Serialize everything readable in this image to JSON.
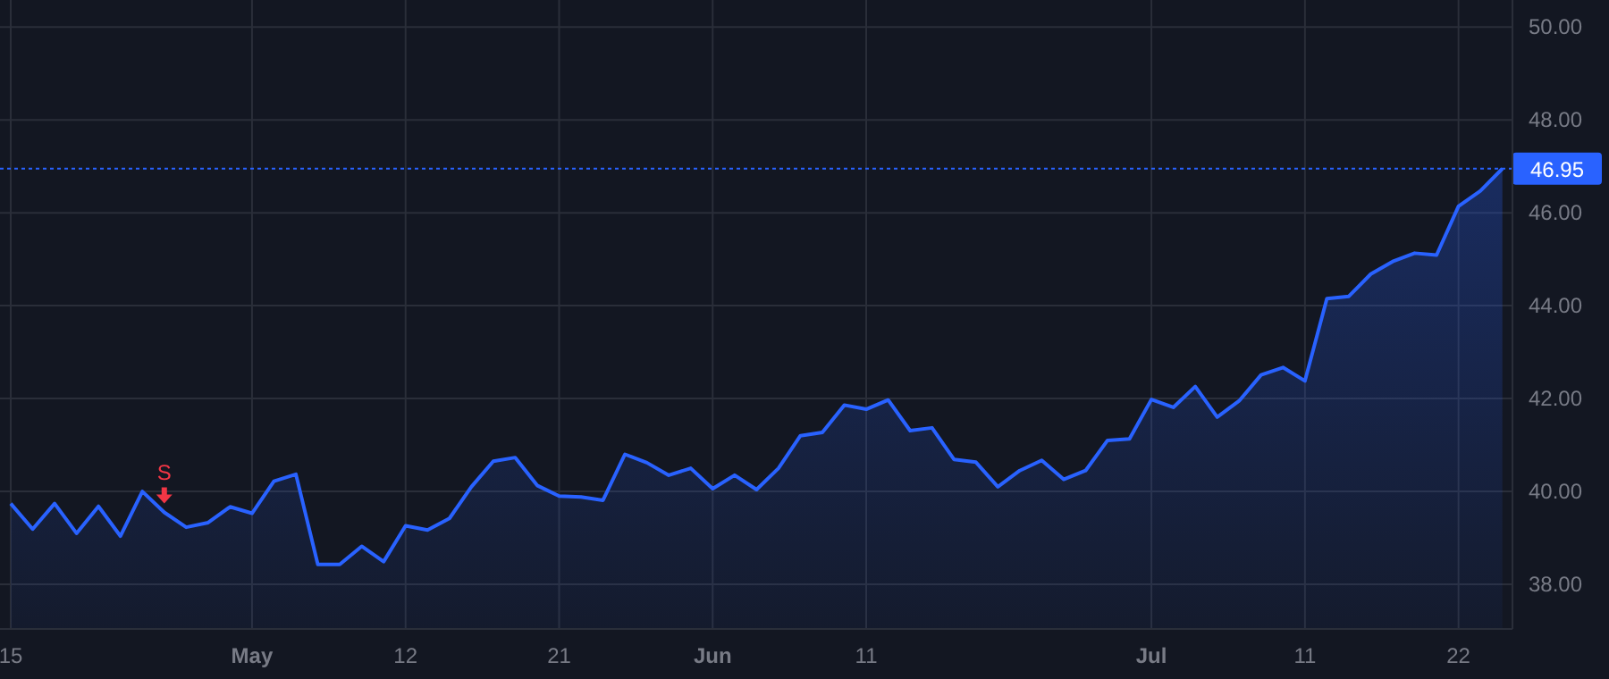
{
  "chart_data": {
    "type": "area",
    "categories": [
      "15",
      null,
      null,
      null,
      null,
      null,
      null,
      null,
      null,
      null,
      null,
      "May",
      null,
      null,
      null,
      null,
      null,
      null,
      "12",
      null,
      null,
      null,
      null,
      null,
      null,
      "21",
      null,
      null,
      null,
      null,
      null,
      null,
      "Jun",
      null,
      null,
      null,
      null,
      null,
      null,
      "11",
      null,
      null,
      null,
      null,
      null,
      null,
      null,
      null,
      null,
      null,
      null,
      null,
      "Jul",
      null,
      null,
      null,
      null,
      null,
      null,
      "11",
      null,
      null,
      null,
      null,
      null,
      null,
      "22",
      null,
      null
    ],
    "series": [
      {
        "color": "#2962ff",
        "values": [
          39.74,
          39.19,
          39.74,
          39.1,
          39.68,
          39.04,
          40.0,
          39.55,
          39.23,
          39.33,
          39.67,
          39.53,
          40.22,
          40.37,
          38.43,
          38.43,
          38.82,
          38.49,
          39.26,
          39.17,
          39.42,
          40.1,
          40.65,
          40.73,
          40.13,
          39.9,
          39.88,
          39.81,
          40.8,
          40.62,
          40.35,
          40.5,
          40.06,
          40.35,
          40.04,
          40.5,
          41.2,
          41.27,
          41.86,
          41.77,
          41.97,
          41.31,
          41.37,
          40.69,
          40.63,
          40.1,
          40.45,
          40.67,
          40.26,
          40.45,
          41.1,
          41.13,
          41.98,
          41.81,
          42.26,
          41.6,
          41.95,
          42.51,
          42.67,
          42.38,
          44.15,
          44.2,
          44.68,
          44.95,
          45.13,
          45.09,
          46.14,
          46.47,
          46.95
        ]
      }
    ],
    "ylim": [
      37.04,
      50.58
    ],
    "yticks": [
      {
        "value": 38,
        "label": "38.00"
      },
      {
        "value": 40,
        "label": "40.00"
      },
      {
        "value": 42,
        "label": "42.00"
      },
      {
        "value": 44,
        "label": "44.00"
      },
      {
        "value": 46,
        "label": "46.00"
      },
      {
        "value": 48,
        "label": "48.00"
      },
      {
        "value": 50,
        "label": "50.00"
      }
    ],
    "grid": true,
    "ref_lines": [
      {
        "axis": "y",
        "value": 46.95,
        "label": "46.95",
        "color": "#2962ff",
        "line_style": "dotted"
      }
    ],
    "annotations": [
      {
        "text": "S",
        "y": 39.55
      }
    ]
  }
}
